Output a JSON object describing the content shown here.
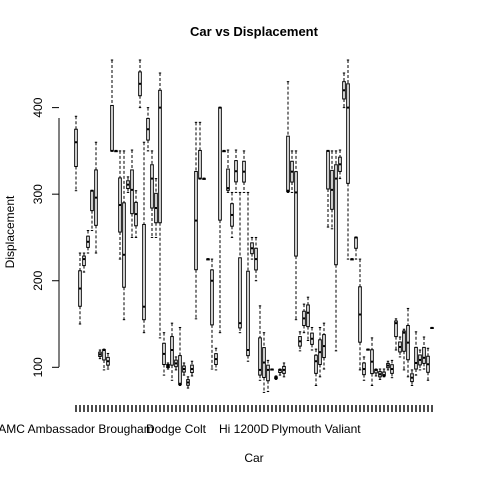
{
  "chart_data": {
    "type": "boxplot",
    "title": "Car vs Displacement",
    "xlabel": "Car",
    "ylabel": "Displacement",
    "y_ticks": [
      100,
      200,
      300,
      400
    ],
    "ylim": [
      68,
      455
    ],
    "x_tick_labels": [
      {
        "index": 0,
        "label": "AMC Ambassador Brougham"
      },
      {
        "index": 25,
        "label": "Dodge Colt"
      },
      {
        "index": 42,
        "label": "Hi 1200D"
      },
      {
        "index": 60,
        "label": "Plymouth Valiant"
      }
    ],
    "n_categories": 90,
    "grid": false,
    "series": [
      {
        "values": [
          390,
          360,
          304,
          150,
          232,
          225,
          232,
          210,
          258,
          232,
          304,
          304,
          258,
          360,
          232,
          110,
          120,
          97,
          121,
          120,
          98,
          116,
          455,
          350,
          350,
          350,
          350,
          350,
          225,
          230,
          155,
          350,
          320,
          302,
          305,
          351,
          250,
          304,
          250,
          400,
          455,
          170,
          140,
          360,
          400,
          350,
          350,
          318,
          250,
          250,
          318,
          440,
          400,
          134,
          91,
          140,
          98,
          105,
          120,
          151,
          85,
          97,
          112,
          146,
          79,
          81,
          91,
          105,
          76,
          89,
          107,
          90,
          98,
          156,
          383,
          383,
          318,
          318,
          318,
          318,
          225,
          225,
          200,
          225,
          98,
          122,
          97,
          140,
          400,
          400,
          350,
          350,
          307,
          351,
          302,
          302,
          250,
          351,
          302,
          302,
          151,
          140,
          302,
          350,
          302,
          120,
          107,
          250,
          225,
          250,
          200,
          171,
          85,
          97,
          140,
          71,
          108,
          97,
          72,
          97,
          98,
          86,
          90,
          98,
          91,
          97,
          105,
          89,
          430,
          304,
          302,
          302,
          350,
          350,
          302,
          155,
          141,
          119,
          173,
          140,
          163,
          131,
          181,
          120,
          146,
          121,
          107,
          79,
          89,
          146,
          98,
          151,
          350,
          350,
          262,
          260,
          350,
          119,
          350,
          318,
          318,
          351,
          440,
          400,
          455,
          400,
          225,
          225,
          225,
          225,
          250,
          250,
          225,
          97,
          98,
          85,
          112,
          121,
          120,
          79,
          134,
          90,
          97,
          98,
          98,
          86,
          91,
          89,
          98,
          97,
          107,
          88,
          108,
          120,
          151,
          156,
          135,
          112,
          144,
          97,
          140,
          168,
          89,
          97,
          79,
          91,
          141,
          105,
          97,
          120,
          98,
          111,
          135,
          122,
          85,
          146,
          145
        ]
      }
    ]
  }
}
